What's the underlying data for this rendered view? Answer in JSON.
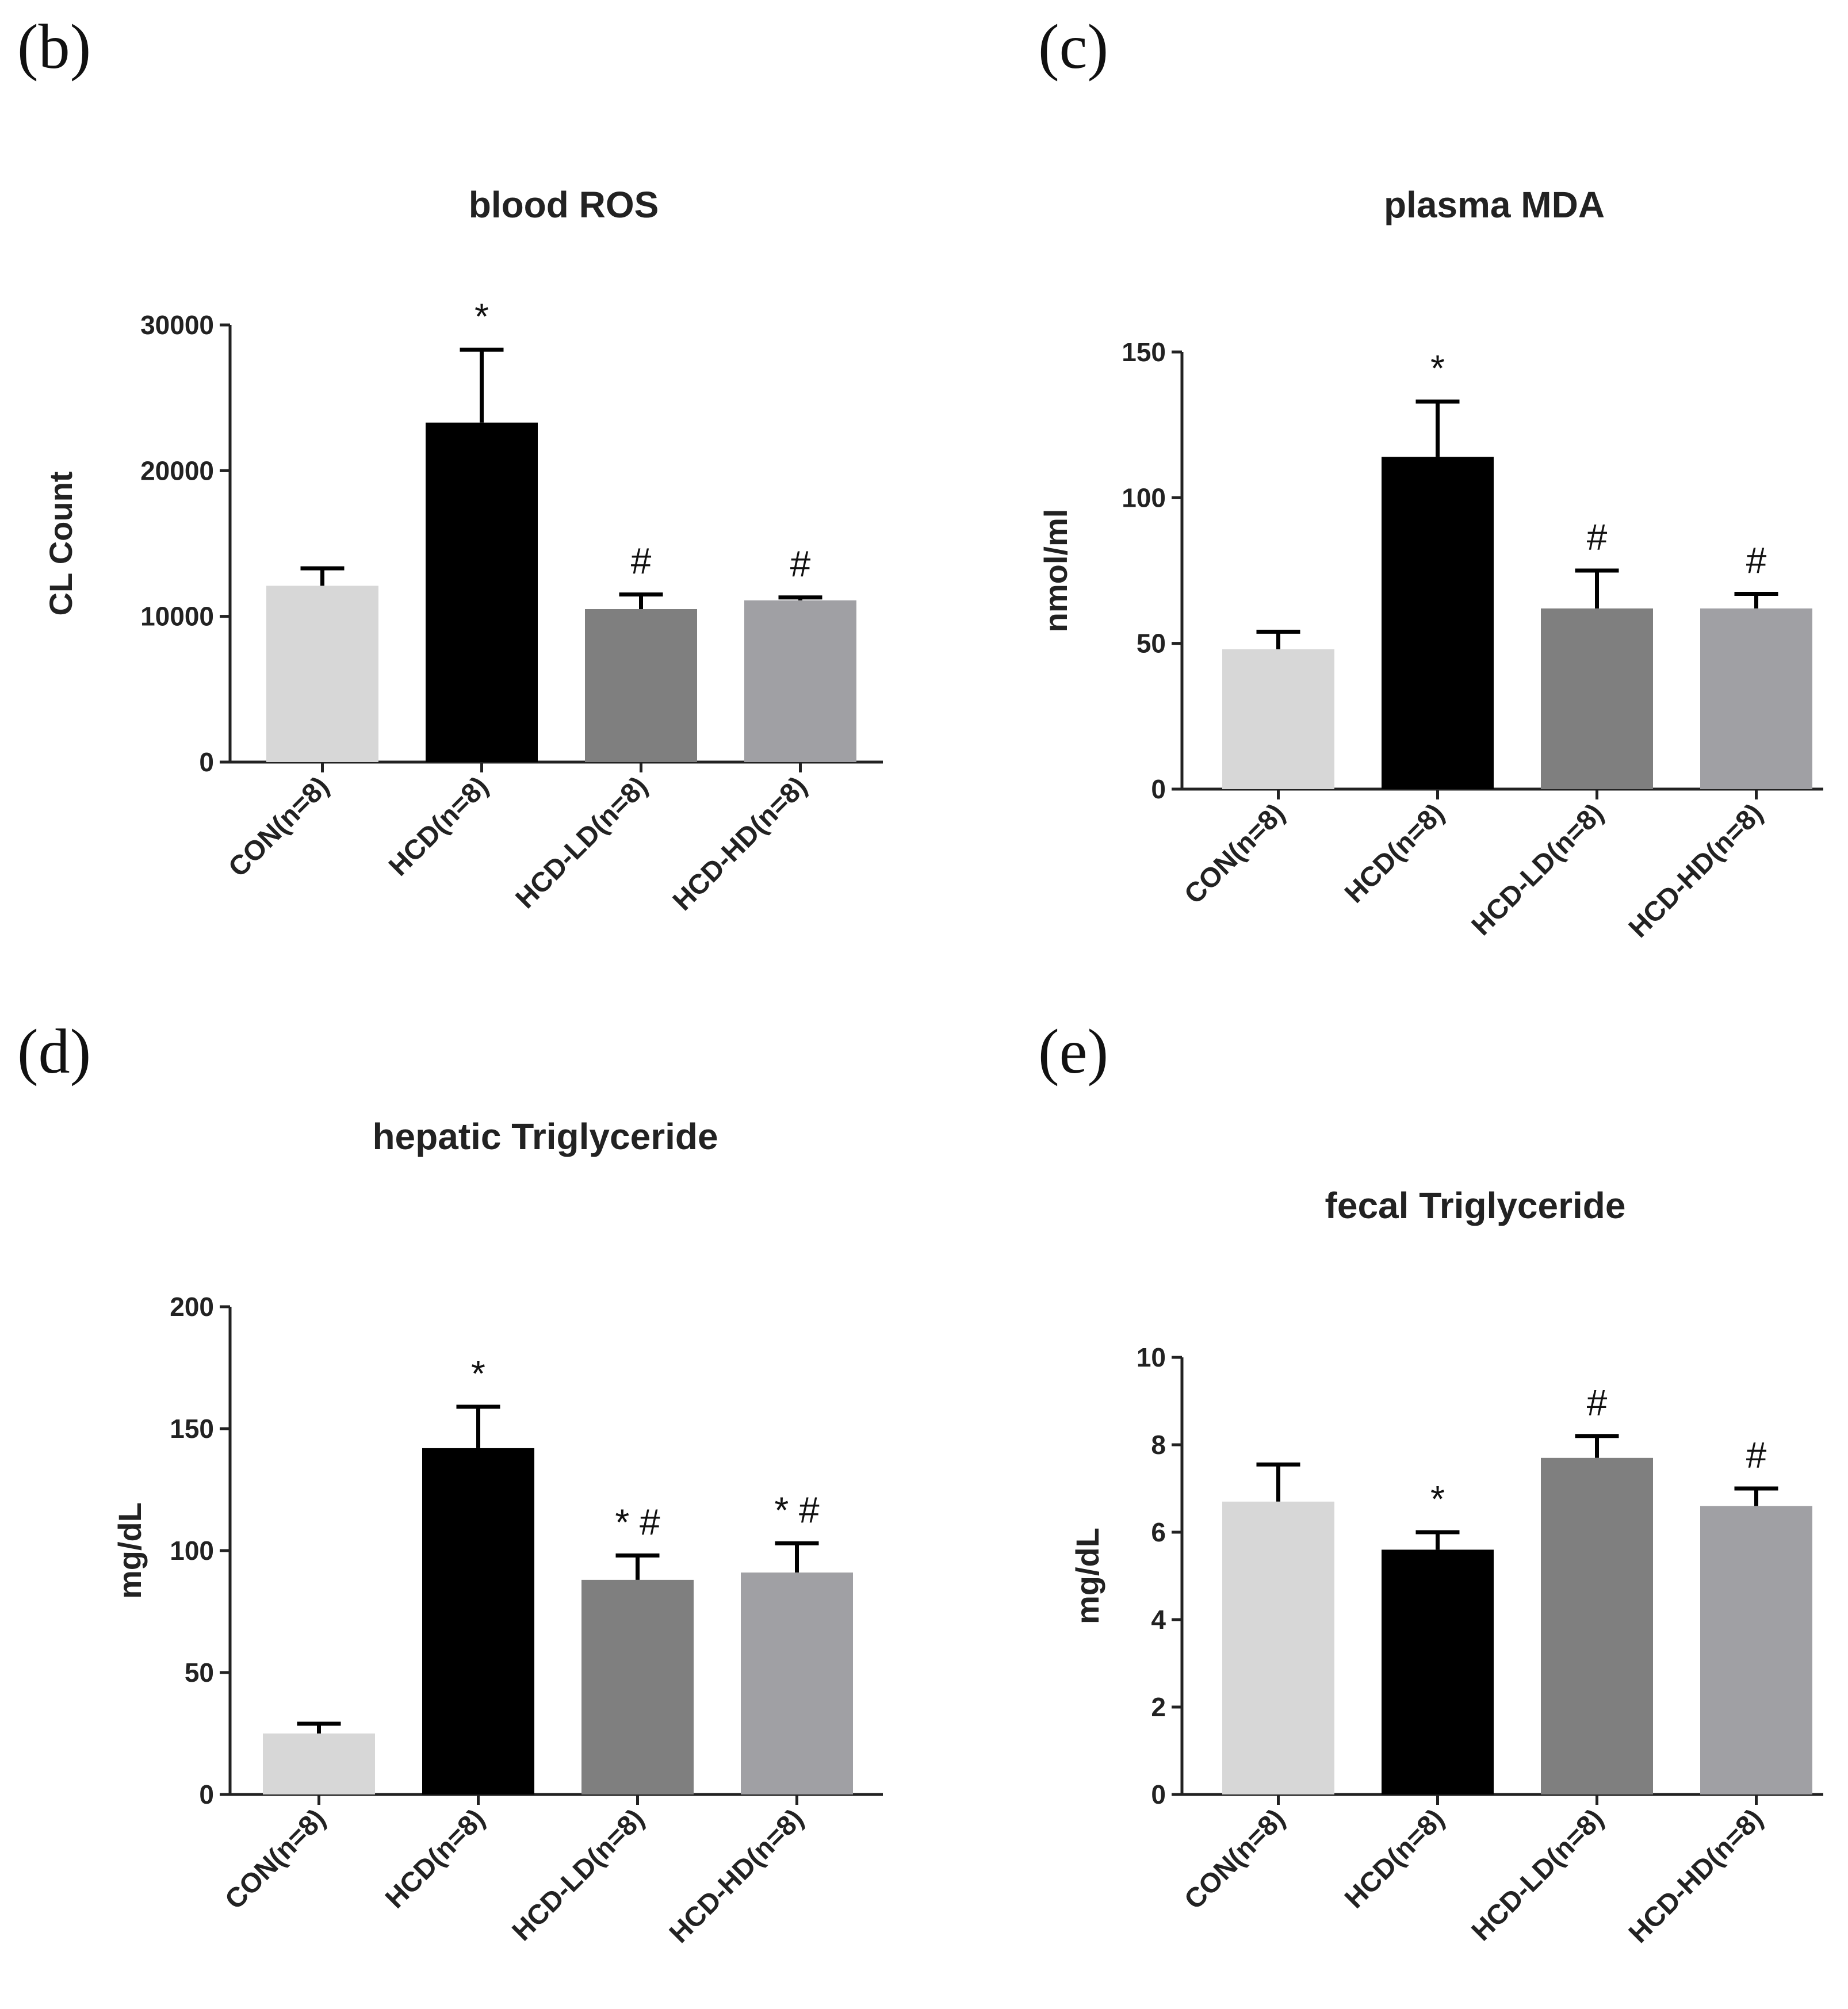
{
  "panels": [
    "(b)",
    "(c)",
    "(d)",
    "(e)"
  ],
  "chart_data": [
    {
      "type": "bar",
      "title": "blood ROS",
      "ylabel": "CL Count",
      "xlabel": "",
      "ylim": [
        0,
        30000
      ],
      "yticks": [
        0,
        10000,
        20000,
        30000
      ],
      "categories": [
        "CON(n=8)",
        "HCD(n=8)",
        "HCD-LD(n=8)",
        "HCD-HD(n=8)"
      ],
      "values": [
        12100,
        23300,
        10500,
        11100
      ],
      "errors": [
        1200,
        5000,
        1000,
        200
      ],
      "significance": [
        "",
        "*",
        "#",
        "#"
      ],
      "colors": [
        "#d7d7d7",
        "#000000",
        "#7f7f7f",
        "#a0a0a4"
      ]
    },
    {
      "type": "bar",
      "title": "plasma MDA",
      "ylabel": "nmol/ml",
      "xlabel": "",
      "ylim": [
        0,
        150
      ],
      "yticks": [
        0,
        50,
        100,
        150
      ],
      "categories": [
        "CON(n=8)",
        "HCD(n=8)",
        "HCD-LD(n=8)",
        "HCD-HD(n=8)"
      ],
      "values": [
        48,
        114,
        62,
        62
      ],
      "errors": [
        6,
        19,
        13,
        5
      ],
      "significance": [
        "",
        "*",
        "#",
        "#"
      ],
      "colors": [
        "#d7d7d7",
        "#000000",
        "#7f7f7f",
        "#a0a0a4"
      ]
    },
    {
      "type": "bar",
      "title": "hepatic Triglyceride",
      "ylabel": "mg/dL",
      "xlabel": "",
      "ylim": [
        0,
        200
      ],
      "yticks": [
        0,
        50,
        100,
        150,
        200
      ],
      "categories": [
        "CON(n=8)",
        "HCD(n=8)",
        "HCD-LD(n=8)",
        "HCD-HD(n=8)"
      ],
      "values": [
        25,
        142,
        88,
        91
      ],
      "errors": [
        4,
        17,
        10,
        12
      ],
      "significance": [
        "",
        "*",
        "* #",
        "* #"
      ],
      "colors": [
        "#d7d7d7",
        "#000000",
        "#7f7f7f",
        "#a0a0a4"
      ]
    },
    {
      "type": "bar",
      "title": "fecal Triglyceride",
      "ylabel": "mg/dL",
      "xlabel": "",
      "ylim": [
        0,
        10
      ],
      "yticks": [
        0,
        2,
        4,
        6,
        8,
        10
      ],
      "categories": [
        "CON(n=8)",
        "HCD(n=8)",
        "HCD-LD(n=8)",
        "HCD-HD(n=8)"
      ],
      "values": [
        6.7,
        5.6,
        7.7,
        6.6
      ],
      "errors": [
        0.85,
        0.4,
        0.5,
        0.4
      ],
      "significance": [
        "",
        "*",
        "#",
        "#"
      ],
      "colors": [
        "#d7d7d7",
        "#000000",
        "#7f7f7f",
        "#a0a0a4"
      ]
    }
  ]
}
